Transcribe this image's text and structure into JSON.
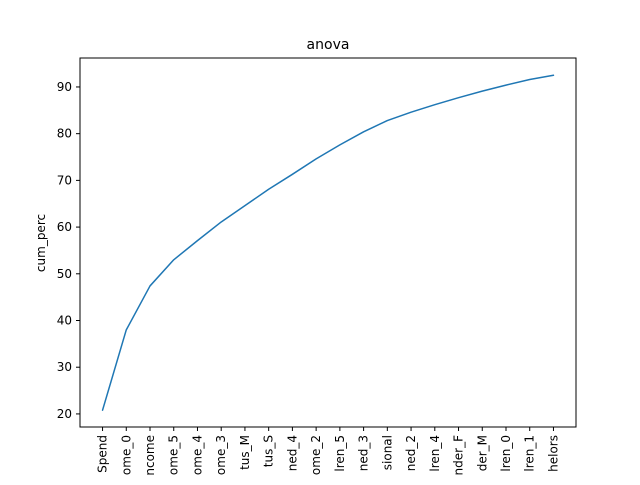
{
  "chart_data": {
    "type": "line",
    "title": "anova",
    "xlabel": "",
    "ylabel": "cum_perc",
    "categories": [
      "Spend",
      "ome_0",
      "ncome",
      "ome_5",
      "ome_4",
      "ome_3",
      "tus_M",
      "tus_S",
      "ned_4",
      "ome_2",
      "lren_5",
      "ned_3",
      "sional",
      "ned_2",
      "lren_4",
      "nder_F",
      "der_M",
      "lren_0",
      "lren_1",
      "helors"
    ],
    "series": [
      {
        "values": [
          20.8,
          38.0,
          47.4,
          53.0,
          57.1,
          61.1,
          64.6,
          68.1,
          71.3,
          74.6,
          77.6,
          80.4,
          82.8,
          84.6,
          86.2,
          87.7,
          89.1,
          90.4,
          91.6,
          92.5
        ]
      }
    ],
    "yticks": [
      20,
      30,
      40,
      50,
      60,
      70,
      80,
      90
    ],
    "ylim": [
      17.2,
      96.2
    ],
    "grid": false,
    "line_color": "#1f77b4"
  }
}
